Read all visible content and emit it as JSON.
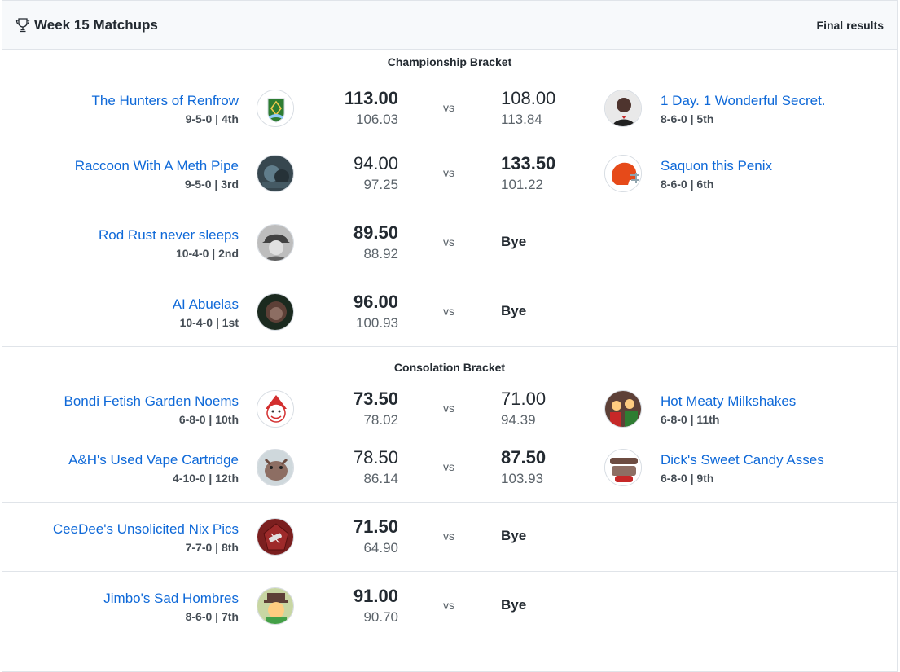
{
  "header": {
    "title": "Week 15 Matchups",
    "status": "Final results",
    "icon": "trophy-icon"
  },
  "brackets": [
    {
      "title": "Championship Bracket",
      "matchups": [
        {
          "home": {
            "name": "The Hunters of Renfrow",
            "record": "9-5-0 | 4th",
            "points": "113.00",
            "projected": "106.03",
            "winner": true
          },
          "away": {
            "name": "1 Day. 1 Wonderful Secret.",
            "record": "8-6-0 | 5th",
            "points": "108.00",
            "projected": "113.84",
            "winner": false
          },
          "vs": "vs",
          "bye": false
        },
        {
          "home": {
            "name": "Raccoon With A Meth Pipe",
            "record": "9-5-0 | 3rd",
            "points": "94.00",
            "projected": "97.25",
            "winner": false
          },
          "away": {
            "name": "Saquon this Penix",
            "record": "8-6-0 | 6th",
            "points": "133.50",
            "projected": "101.22",
            "winner": true
          },
          "vs": "vs",
          "bye": false
        },
        {
          "home": {
            "name": "Rod Rust never sleeps",
            "record": "10-4-0 | 2nd",
            "points": "89.50",
            "projected": "88.92",
            "winner": true
          },
          "vs": "vs",
          "bye": true,
          "bye_label": "Bye"
        },
        {
          "home": {
            "name": "AI Abuelas",
            "record": "10-4-0 | 1st",
            "points": "96.00",
            "projected": "100.93",
            "winner": true
          },
          "vs": "vs",
          "bye": true,
          "bye_label": "Bye"
        }
      ]
    },
    {
      "title": "Consolation Bracket",
      "matchups": [
        {
          "home": {
            "name": "Bondi Fetish Garden Noems",
            "record": "6-8-0 | 10th",
            "points": "73.50",
            "projected": "78.02",
            "winner": true
          },
          "away": {
            "name": "Hot Meaty Milkshakes",
            "record": "6-8-0 | 11th",
            "points": "71.00",
            "projected": "94.39",
            "winner": false
          },
          "vs": "vs",
          "bye": false
        },
        {
          "home": {
            "name": "A&H's Used Vape Cartridge",
            "record": "4-10-0 | 12th",
            "points": "78.50",
            "projected": "86.14",
            "winner": false
          },
          "away": {
            "name": "Dick's Sweet Candy Asses",
            "record": "6-8-0 | 9th",
            "points": "87.50",
            "projected": "103.93",
            "winner": true
          },
          "vs": "vs",
          "bye": false
        },
        {
          "home": {
            "name": "CeeDee's Unsolicited Nix Pics",
            "record": "7-7-0 | 8th",
            "points": "71.50",
            "projected": "64.90",
            "winner": true
          },
          "vs": "vs",
          "bye": true,
          "bye_label": "Bye"
        },
        {
          "home": {
            "name": "Jimbo's Sad Hombres",
            "record": "8-6-0 | 7th",
            "points": "91.00",
            "projected": "90.70",
            "winner": true
          },
          "vs": "vs",
          "bye": true,
          "bye_label": "Bye"
        }
      ]
    }
  ]
}
